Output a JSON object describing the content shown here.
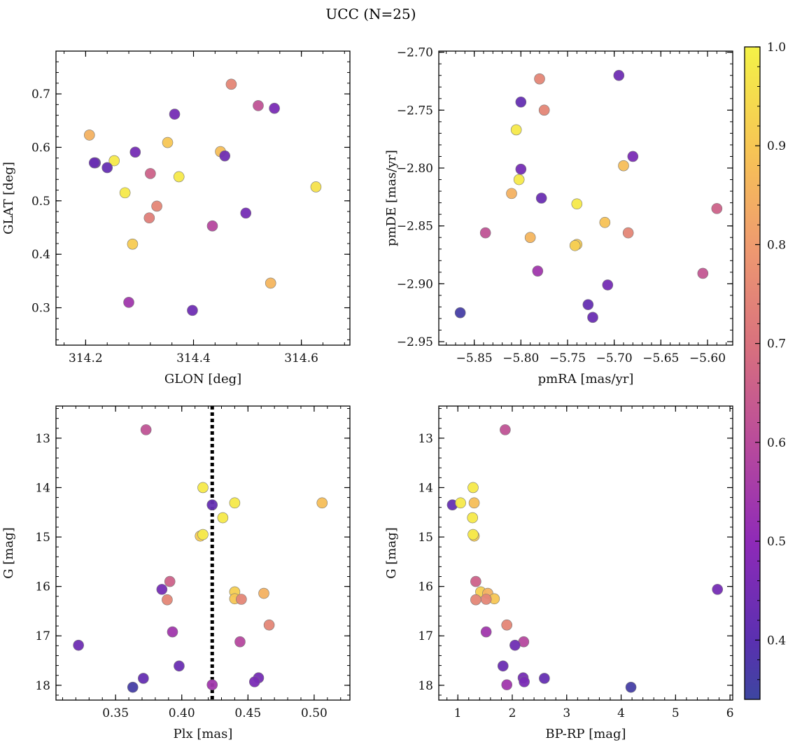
{
  "title": "UCC (N=25)",
  "colorbar": {
    "range": [
      0.34,
      1.0
    ],
    "ticks": [
      "0.4",
      "0.5",
      "0.6",
      "0.7",
      "0.8",
      "0.9",
      "1.0"
    ],
    "tick_values": [
      0.4,
      0.5,
      0.6,
      0.7,
      0.8,
      0.9,
      1.0
    ],
    "colormap": "plasma"
  },
  "chart_data": [
    {
      "type": "scatter",
      "xlabel": "GLON [deg]",
      "ylabel": "GLAT [deg]",
      "xlim": [
        314.145,
        314.69
      ],
      "ylim": [
        0.23,
        0.78
      ],
      "y_inverted": false,
      "xticks": [
        314.2,
        314.4,
        314.6
      ],
      "xtick_labels": [
        "314.2",
        "314.4",
        "314.6"
      ],
      "yticks": [
        0.3,
        0.4,
        0.5,
        0.6,
        0.7
      ],
      "ytick_labels": [
        "0.3",
        "0.4",
        "0.5",
        "0.6",
        "0.7"
      ],
      "points": [
        {
          "x": 314.47,
          "y": 0.718,
          "c": 0.75
        },
        {
          "x": 314.52,
          "y": 0.678,
          "c": 0.62
        },
        {
          "x": 314.55,
          "y": 0.673,
          "c": 0.46
        },
        {
          "x": 314.365,
          "y": 0.662,
          "c": 0.45
        },
        {
          "x": 314.207,
          "y": 0.623,
          "c": 0.85
        },
        {
          "x": 314.352,
          "y": 0.609,
          "c": 0.9
        },
        {
          "x": 314.45,
          "y": 0.592,
          "c": 0.88
        },
        {
          "x": 314.292,
          "y": 0.591,
          "c": 0.45
        },
        {
          "x": 314.458,
          "y": 0.584,
          "c": 0.44
        },
        {
          "x": 314.253,
          "y": 0.575,
          "c": 0.98
        },
        {
          "x": 314.218,
          "y": 0.571,
          "c": 0.42
        },
        {
          "x": 314.216,
          "y": 0.571,
          "c": 0.43
        },
        {
          "x": 314.24,
          "y": 0.562,
          "c": 0.42
        },
        {
          "x": 314.32,
          "y": 0.551,
          "c": 0.66
        },
        {
          "x": 314.373,
          "y": 0.545,
          "c": 0.98
        },
        {
          "x": 314.627,
          "y": 0.526,
          "c": 0.96
        },
        {
          "x": 314.273,
          "y": 0.515,
          "c": 0.98
        },
        {
          "x": 314.332,
          "y": 0.49,
          "c": 0.75
        },
        {
          "x": 314.497,
          "y": 0.477,
          "c": 0.45
        },
        {
          "x": 314.318,
          "y": 0.468,
          "c": 0.73
        },
        {
          "x": 314.435,
          "y": 0.453,
          "c": 0.59
        },
        {
          "x": 314.287,
          "y": 0.419,
          "c": 0.91
        },
        {
          "x": 314.543,
          "y": 0.346,
          "c": 0.86
        },
        {
          "x": 314.28,
          "y": 0.31,
          "c": 0.54
        },
        {
          "x": 314.398,
          "y": 0.295,
          "c": 0.44
        }
      ]
    },
    {
      "type": "scatter",
      "xlabel": "pmRA [mas/yr]",
      "ylabel": "pmDE [mas/yr]",
      "xlim": [
        -5.888,
        -5.573
      ],
      "ylim": [
        -2.953,
        -2.699
      ],
      "y_inverted": false,
      "xticks": [
        -5.85,
        -5.8,
        -5.75,
        -5.7,
        -5.65,
        -5.6
      ],
      "xtick_labels": [
        "−5.85",
        "−5.80",
        "−5.75",
        "−5.70",
        "−5.65",
        "−5.60"
      ],
      "yticks": [
        -2.95,
        -2.9,
        -2.85,
        -2.8,
        -2.75,
        -2.7
      ],
      "ytick_labels": [
        "−2.95",
        "−2.90",
        "−2.85",
        "−2.80",
        "−2.75",
        "−2.70"
      ],
      "points": [
        {
          "x": -5.695,
          "y": -2.72,
          "c": 0.44
        },
        {
          "x": -5.78,
          "y": -2.723,
          "c": 0.75
        },
        {
          "x": -5.8,
          "y": -2.743,
          "c": 0.42
        },
        {
          "x": -5.775,
          "y": -2.75,
          "c": 0.75
        },
        {
          "x": -5.805,
          "y": -2.767,
          "c": 0.98
        },
        {
          "x": -5.68,
          "y": -2.79,
          "c": 0.46
        },
        {
          "x": -5.69,
          "y": -2.798,
          "c": 0.88
        },
        {
          "x": -5.8,
          "y": -2.801,
          "c": 0.45
        },
        {
          "x": -5.802,
          "y": -2.81,
          "c": 0.98
        },
        {
          "x": -5.81,
          "y": -2.822,
          "c": 0.85
        },
        {
          "x": -5.778,
          "y": -2.826,
          "c": 0.43
        },
        {
          "x": -5.74,
          "y": -2.831,
          "c": 0.98
        },
        {
          "x": -5.59,
          "y": -2.835,
          "c": 0.66
        },
        {
          "x": -5.71,
          "y": -2.847,
          "c": 0.89
        },
        {
          "x": -5.838,
          "y": -2.856,
          "c": 0.62
        },
        {
          "x": -5.685,
          "y": -2.856,
          "c": 0.75
        },
        {
          "x": -5.79,
          "y": -2.86,
          "c": 0.86
        },
        {
          "x": -5.74,
          "y": -2.866,
          "c": 0.91
        },
        {
          "x": -5.742,
          "y": -2.867,
          "c": 0.92
        },
        {
          "x": -5.782,
          "y": -2.889,
          "c": 0.54
        },
        {
          "x": -5.605,
          "y": -2.891,
          "c": 0.63
        },
        {
          "x": -5.707,
          "y": -2.901,
          "c": 0.45
        },
        {
          "x": -5.728,
          "y": -2.918,
          "c": 0.42
        },
        {
          "x": -5.723,
          "y": -2.929,
          "c": 0.43
        },
        {
          "x": -5.865,
          "y": -2.925,
          "c": 0.36
        }
      ]
    },
    {
      "type": "scatter",
      "xlabel": "Plx [mas]",
      "ylabel": "G [mag]",
      "xlim": [
        0.305,
        0.527
      ],
      "ylim": [
        18.3,
        12.35
      ],
      "y_inverted": true,
      "xticks": [
        0.35,
        0.4,
        0.45,
        0.5
      ],
      "xtick_labels": [
        "0.35",
        "0.40",
        "0.45",
        "0.50"
      ],
      "yticks": [
        13,
        14,
        15,
        16,
        17,
        18
      ],
      "ytick_labels": [
        "13",
        "14",
        "15",
        "16",
        "17",
        "18"
      ],
      "vline": {
        "x": 0.423,
        "style": "dotted"
      },
      "points": [
        {
          "x": 0.373,
          "y": 12.83,
          "c": 0.62
        },
        {
          "x": 0.416,
          "y": 14.0,
          "c": 0.98
        },
        {
          "x": 0.423,
          "y": 14.35,
          "c": 0.42
        },
        {
          "x": 0.44,
          "y": 14.31,
          "c": 0.98
        },
        {
          "x": 0.506,
          "y": 14.31,
          "c": 0.88
        },
        {
          "x": 0.431,
          "y": 14.61,
          "c": 0.98
        },
        {
          "x": 0.414,
          "y": 14.98,
          "c": 0.91
        },
        {
          "x": 0.416,
          "y": 14.95,
          "c": 0.98
        },
        {
          "x": 0.391,
          "y": 15.9,
          "c": 0.66
        },
        {
          "x": 0.385,
          "y": 16.06,
          "c": 0.45
        },
        {
          "x": 0.44,
          "y": 16.11,
          "c": 0.92
        },
        {
          "x": 0.462,
          "y": 16.14,
          "c": 0.85
        },
        {
          "x": 0.389,
          "y": 16.27,
          "c": 0.75
        },
        {
          "x": 0.44,
          "y": 16.25,
          "c": 0.9
        },
        {
          "x": 0.445,
          "y": 16.26,
          "c": 0.75
        },
        {
          "x": 0.466,
          "y": 16.78,
          "c": 0.75
        },
        {
          "x": 0.393,
          "y": 16.92,
          "c": 0.54
        },
        {
          "x": 0.444,
          "y": 17.12,
          "c": 0.59
        },
        {
          "x": 0.322,
          "y": 17.19,
          "c": 0.44
        },
        {
          "x": 0.398,
          "y": 17.61,
          "c": 0.43
        },
        {
          "x": 0.371,
          "y": 17.86,
          "c": 0.42
        },
        {
          "x": 0.458,
          "y": 17.85,
          "c": 0.45
        },
        {
          "x": 0.455,
          "y": 17.93,
          "c": 0.46
        },
        {
          "x": 0.423,
          "y": 17.99,
          "c": 0.54
        },
        {
          "x": 0.363,
          "y": 18.04,
          "c": 0.36
        }
      ]
    },
    {
      "type": "scatter",
      "xlabel": "BP-RP [mag]",
      "ylabel": "G [mag]",
      "xlim": [
        0.65,
        6.05
      ],
      "ylim": [
        18.3,
        12.35
      ],
      "y_inverted": true,
      "xticks": [
        1,
        2,
        3,
        4,
        5,
        6
      ],
      "xtick_labels": [
        "1",
        "2",
        "3",
        "4",
        "5",
        "6"
      ],
      "yticks": [
        13,
        14,
        15,
        16,
        17,
        18
      ],
      "ytick_labels": [
        "13",
        "14",
        "15",
        "16",
        "17",
        "18"
      ],
      "points": [
        {
          "x": 1.87,
          "y": 12.83,
          "c": 0.62
        },
        {
          "x": 1.28,
          "y": 14.0,
          "c": 0.98
        },
        {
          "x": 0.9,
          "y": 14.35,
          "c": 0.42
        },
        {
          "x": 1.05,
          "y": 14.31,
          "c": 0.98
        },
        {
          "x": 1.3,
          "y": 14.31,
          "c": 0.88
        },
        {
          "x": 1.27,
          "y": 14.61,
          "c": 0.98
        },
        {
          "x": 1.3,
          "y": 14.98,
          "c": 0.91
        },
        {
          "x": 1.28,
          "y": 14.95,
          "c": 0.98
        },
        {
          "x": 1.33,
          "y": 15.9,
          "c": 0.66
        },
        {
          "x": 5.77,
          "y": 16.06,
          "c": 0.45
        },
        {
          "x": 1.42,
          "y": 16.11,
          "c": 0.92
        },
        {
          "x": 1.55,
          "y": 16.14,
          "c": 0.85
        },
        {
          "x": 1.33,
          "y": 16.27,
          "c": 0.75
        },
        {
          "x": 1.67,
          "y": 16.25,
          "c": 0.9
        },
        {
          "x": 1.52,
          "y": 16.26,
          "c": 0.75
        },
        {
          "x": 1.9,
          "y": 16.78,
          "c": 0.75
        },
        {
          "x": 1.52,
          "y": 16.92,
          "c": 0.54
        },
        {
          "x": 2.21,
          "y": 17.12,
          "c": 0.59
        },
        {
          "x": 2.05,
          "y": 17.19,
          "c": 0.44
        },
        {
          "x": 1.83,
          "y": 17.61,
          "c": 0.43
        },
        {
          "x": 2.59,
          "y": 17.86,
          "c": 0.42
        },
        {
          "x": 2.2,
          "y": 17.85,
          "c": 0.45
        },
        {
          "x": 2.22,
          "y": 17.93,
          "c": 0.46
        },
        {
          "x": 1.9,
          "y": 17.99,
          "c": 0.54
        },
        {
          "x": 4.18,
          "y": 18.04,
          "c": 0.36
        }
      ]
    }
  ]
}
